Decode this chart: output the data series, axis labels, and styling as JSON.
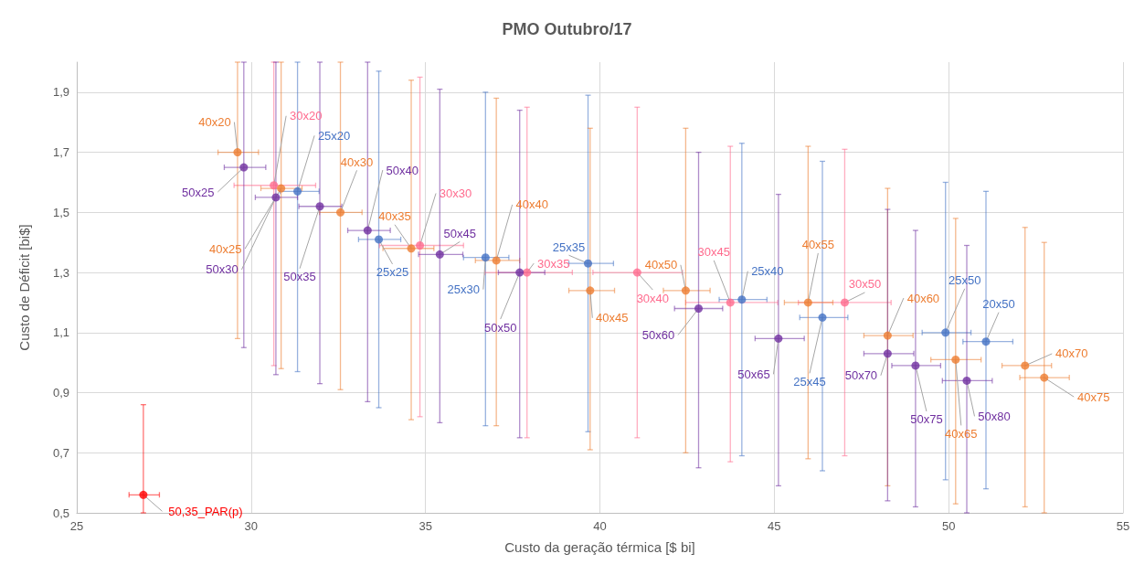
{
  "chart_data": {
    "type": "scatter",
    "title": "PMO Outubro/17",
    "xlabel": "Custo da geração térmica [$ bi]",
    "ylabel": "Custo de Déficit [bi$]",
    "xlim": [
      25,
      55
    ],
    "xticks": [
      25,
      30,
      35,
      40,
      45,
      50,
      55
    ],
    "ylim": [
      0.5,
      2.0
    ],
    "yticks": [
      {
        "value": 0.5,
        "label": "0,5"
      },
      {
        "value": 0.7,
        "label": "0,7"
      },
      {
        "value": 0.9,
        "label": "0,9"
      },
      {
        "value": 1.1,
        "label": "1,1"
      },
      {
        "value": 1.3,
        "label": "1,3"
      },
      {
        "value": 1.5,
        "label": "1,5"
      },
      {
        "value": 1.7,
        "label": "1,7"
      },
      {
        "value": 1.9,
        "label": "1,9"
      }
    ],
    "grid": true,
    "marker": "circle",
    "series": [
      {
        "color": "#4472c4",
        "x": [
          31.33,
          33.66,
          36.72,
          39.66,
          44.07,
          46.38,
          49.91,
          51.07
        ],
        "values": [
          1.57,
          1.41,
          1.35,
          1.33,
          1.21,
          1.15,
          1.1,
          1.07
        ],
        "errors": [
          [
            0.97,
            2.0
          ],
          [
            0.85,
            1.97
          ],
          [
            0.79,
            1.9
          ],
          [
            0.77,
            1.89
          ],
          [
            0.69,
            1.73
          ],
          [
            0.64,
            1.67
          ],
          [
            0.61,
            1.6
          ],
          [
            0.58,
            1.57
          ]
        ],
        "xerrors": [
          [
            30.83,
            31.95
          ],
          [
            33.08,
            34.29
          ],
          [
            36.09,
            37.39
          ],
          [
            39.11,
            40.39
          ],
          [
            43.42,
            44.79
          ],
          [
            45.73,
            47.11
          ],
          [
            49.24,
            50.64
          ],
          [
            50.41,
            51.84
          ]
        ]
      },
      {
        "color": "#ff6b8e",
        "x": [
          30.65,
          34.84,
          37.91,
          41.07,
          43.74,
          47.02
        ],
        "values": [
          1.59,
          1.39,
          1.3,
          1.3,
          1.2,
          1.2
        ],
        "errors": [
          [
            0.99,
            2.0
          ],
          [
            0.82,
            1.95
          ],
          [
            0.75,
            1.85
          ],
          [
            0.75,
            1.85
          ],
          [
            0.67,
            1.72
          ],
          [
            0.69,
            1.71
          ]
        ],
        "xerrors": [
          [
            29.51,
            31.85
          ],
          [
            33.68,
            36.09
          ],
          [
            36.7,
            39.21
          ],
          [
            39.8,
            42.37
          ],
          [
            42.46,
            45.1
          ],
          [
            45.69,
            48.35
          ]
        ]
      },
      {
        "color": "#ed7d31",
        "x": [
          29.61,
          30.86,
          32.56,
          34.59,
          37.03,
          39.72,
          42.46,
          45.97,
          48.25,
          50.2,
          52.19,
          52.74
        ],
        "values": [
          1.7,
          1.58,
          1.5,
          1.38,
          1.34,
          1.24,
          1.24,
          1.2,
          1.09,
          1.01,
          0.99,
          0.95
        ],
        "errors": [
          [
            1.08,
            2.0
          ],
          [
            0.98,
            2.0
          ],
          [
            0.91,
            2.0
          ],
          [
            0.81,
            1.94
          ],
          [
            0.79,
            1.88
          ],
          [
            0.71,
            1.78
          ],
          [
            0.7,
            1.78
          ],
          [
            0.68,
            1.72
          ],
          [
            0.59,
            1.58
          ],
          [
            0.53,
            1.48
          ],
          [
            0.52,
            1.45
          ],
          [
            0.5,
            1.4
          ]
        ],
        "xerrors": [
          [
            29.05,
            30.21
          ],
          [
            30.28,
            31.46
          ],
          [
            31.96,
            33.18
          ],
          [
            33.78,
            35.24
          ],
          [
            36.43,
            37.7
          ],
          [
            39.11,
            40.42
          ],
          [
            41.82,
            43.16
          ],
          [
            45.29,
            46.68
          ],
          [
            47.57,
            48.98
          ],
          [
            49.49,
            50.93
          ],
          [
            51.53,
            52.95
          ],
          [
            52.04,
            53.46
          ]
        ]
      },
      {
        "color": "#7030a0",
        "x": [
          29.79,
          30.71,
          31.97,
          33.34,
          35.41,
          37.7,
          42.83,
          45.12,
          48.25,
          49.05,
          50.52
        ],
        "values": [
          1.65,
          1.55,
          1.52,
          1.44,
          1.36,
          1.3,
          1.18,
          1.08,
          1.03,
          0.99,
          0.94
        ],
        "errors": [
          [
            1.05,
            2.0
          ],
          [
            0.96,
            2.0
          ],
          [
            0.93,
            2.0
          ],
          [
            0.87,
            2.0
          ],
          [
            0.8,
            1.91
          ],
          [
            0.75,
            1.84
          ],
          [
            0.65,
            1.7
          ],
          [
            0.59,
            1.56
          ],
          [
            0.54,
            1.51
          ],
          [
            0.52,
            1.44
          ],
          [
            0.5,
            1.39
          ]
        ],
        "xerrors": [
          [
            29.23,
            30.42
          ],
          [
            30.12,
            31.33
          ],
          [
            31.37,
            32.6
          ],
          [
            32.77,
            33.99
          ],
          [
            34.8,
            36.07
          ],
          [
            37.09,
            38.42
          ],
          [
            42.14,
            43.52
          ],
          [
            44.45,
            45.86
          ],
          [
            47.57,
            49.0
          ],
          [
            48.37,
            49.77
          ],
          [
            49.82,
            51.25
          ]
        ]
      },
      {
        "color": "#ff0000",
        "x": [
          26.91
        ],
        "values": [
          0.56
        ],
        "errors": [
          [
            0.5,
            0.86
          ]
        ],
        "xerrors": [
          [
            26.5,
            27.37
          ]
        ]
      }
    ],
    "annotations": [
      {
        "text": "40x20",
        "x": 29.61,
        "y": 1.7
      },
      {
        "text": "30x20",
        "x": 30.65,
        "y": 1.59
      },
      {
        "text": "25x20",
        "x": 31.33,
        "y": 1.57
      },
      {
        "text": "50x25",
        "x": 29.79,
        "y": 1.65
      },
      {
        "text": "40x25",
        "x": 30.86,
        "y": 1.58
      },
      {
        "text": "50x30",
        "x": 30.71,
        "y": 1.55
      },
      {
        "text": "50x35",
        "x": 31.97,
        "y": 1.52
      },
      {
        "text": "40x30",
        "x": 32.56,
        "y": 1.5
      },
      {
        "text": "50x40",
        "x": 33.34,
        "y": 1.44
      },
      {
        "text": "40x35",
        "x": 34.59,
        "y": 1.38
      },
      {
        "text": "30x30",
        "x": 34.84,
        "y": 1.39
      },
      {
        "text": "50x45",
        "x": 35.41,
        "y": 1.36
      },
      {
        "text": "25x25",
        "x": 33.66,
        "y": 1.41
      },
      {
        "text": "25x30",
        "x": 36.72,
        "y": 1.35
      },
      {
        "text": "40x40",
        "x": 37.03,
        "y": 1.34
      },
      {
        "text": "50x50",
        "x": 37.7,
        "y": 1.3
      },
      {
        "text": "30x35",
        "x": 37.91,
        "y": 1.3
      },
      {
        "text": "25x35",
        "x": 39.66,
        "y": 1.33
      },
      {
        "text": "40x45",
        "x": 39.72,
        "y": 1.24
      },
      {
        "text": "30x40",
        "x": 41.07,
        "y": 1.3
      },
      {
        "text": "40x50",
        "x": 42.46,
        "y": 1.24
      },
      {
        "text": "50x60",
        "x": 42.83,
        "y": 1.18
      },
      {
        "text": "30x45",
        "x": 43.74,
        "y": 1.2
      },
      {
        "text": "25x40",
        "x": 44.07,
        "y": 1.21
      },
      {
        "text": "50x65",
        "x": 45.12,
        "y": 1.08
      },
      {
        "text": "40x55",
        "x": 45.97,
        "y": 1.2
      },
      {
        "text": "25x45",
        "x": 46.38,
        "y": 1.15
      },
      {
        "text": "30x50",
        "x": 47.02,
        "y": 1.2
      },
      {
        "text": "40x60",
        "x": 48.25,
        "y": 1.09
      },
      {
        "text": "50x70",
        "x": 48.25,
        "y": 1.03
      },
      {
        "text": "50x75",
        "x": 49.05,
        "y": 0.99
      },
      {
        "text": "25x50",
        "x": 49.91,
        "y": 1.1
      },
      {
        "text": "40x65",
        "x": 50.2,
        "y": 1.01
      },
      {
        "text": "50x80",
        "x": 50.52,
        "y": 0.94
      },
      {
        "text": "20x50",
        "x": 51.07,
        "y": 1.07
      },
      {
        "text": "40x70",
        "x": 52.19,
        "y": 0.99
      },
      {
        "text": "40x75",
        "x": 52.74,
        "y": 0.95
      },
      {
        "text": "50,35_PAR(p)",
        "x": 26.91,
        "y": 0.56
      }
    ]
  }
}
